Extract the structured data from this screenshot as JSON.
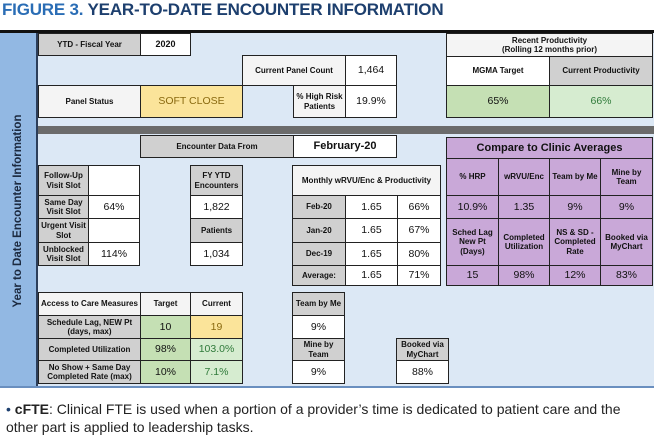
{
  "title": {
    "figure": "FIGURE 3.",
    "text": "YEAR-TO-DATE ENCOUNTER INFORMATION"
  },
  "sidebar_label": "Year to Date Encounter Information",
  "ytd": {
    "label": "YTD - Fiscal Year",
    "value": "2020"
  },
  "panel_count": {
    "label": "Current Panel Count",
    "value": "1,464"
  },
  "panel_status": {
    "label": "Panel Status",
    "value": "SOFT CLOSE"
  },
  "high_risk": {
    "label": "% High Risk Patients",
    "value": "19.9%"
  },
  "productivity": {
    "title": "Recent Productivity",
    "subtitle": "(Rolling 12 months prior)",
    "mgma_label": "MGMA Target",
    "current_label": "Current Productivity",
    "mgma_value": "65%",
    "current_value": "66%"
  },
  "encounter_from": {
    "label": "Encounter Data From",
    "value": "February-20"
  },
  "slots": [
    {
      "label": "Follow-Up Visit Slot",
      "value": ""
    },
    {
      "label": "Same Day Visit Slot",
      "value": "64%"
    },
    {
      "label": "Urgent Visit Slot",
      "value": ""
    },
    {
      "label": "Unblocked Visit Slot",
      "value": "114%"
    }
  ],
  "fy": {
    "encounters_label": "FY YTD Encounters",
    "encounters": "1,822",
    "patients_label": "Patients",
    "patients": "1,034"
  },
  "monthly": {
    "title": "Monthly wRVU/Enc & Productivity",
    "rows": [
      [
        "Feb-20",
        "1.65",
        "66%"
      ],
      [
        "Jan-20",
        "1.65",
        "67%"
      ],
      [
        "Dec-19",
        "1.65",
        "80%"
      ],
      [
        "Average:",
        "1.65",
        "71%"
      ]
    ]
  },
  "compare": {
    "title": "Compare to Clinic Averages",
    "labels1": [
      "% HRP",
      "wRVU/Enc",
      "Team by Me",
      "Mine by Team"
    ],
    "values1": [
      "10.9%",
      "1.35",
      "9%",
      "9%"
    ],
    "labels2": [
      "Sched Lag New Pt (Days)",
      "Completed Utilization",
      "NS & SD - Completed Rate",
      "Booked via MyChart"
    ],
    "values2": [
      "15",
      "98%",
      "12%",
      "83%"
    ]
  },
  "access": {
    "headers": [
      "Access to Care Measures",
      "Target",
      "Current"
    ],
    "rows": [
      [
        "Schedule Lag, NEW Pt (days, max)",
        "10",
        "19"
      ],
      [
        "Completed Utilization",
        "98%",
        "103.0%"
      ],
      [
        "No Show + Same Day Completed Rate (max)",
        "10%",
        "7.1%"
      ]
    ]
  },
  "team": {
    "team_by_me_label": "Team by Me",
    "team_by_me": "9%",
    "mine_by_team_label": "Mine by Team",
    "mine_by_team": "9%",
    "mychart_label": "Booked via MyChart",
    "mychart": "88%"
  },
  "note": {
    "bullet": "•",
    "term": "cFTE",
    "text": ": Clinical FTE is used when a portion of a provider’s time is dedicated to patient care and the other part is applied to leadership tasks."
  }
}
